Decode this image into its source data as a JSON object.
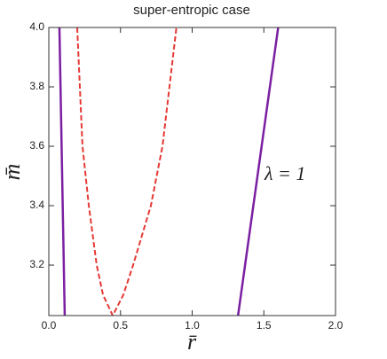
{
  "chart_data": {
    "type": "line",
    "title": "super-entropic case",
    "x_label": "r̄",
    "y_label": "m̄",
    "annotation": "λ = 1",
    "xlim": [
      0,
      2
    ],
    "ylim": [
      3.03,
      4
    ],
    "xticks": [
      {
        "value": 0,
        "label": "0.0"
      },
      0.5,
      {
        "value": 1,
        "label": "1.0"
      },
      1.5,
      {
        "value": 2,
        "label": "2.0"
      }
    ],
    "yticks": [
      3.2,
      3.4,
      3.6,
      3.8,
      {
        "value": 4,
        "label": "4.0"
      }
    ],
    "series": [
      {
        "color": "#7b1fa2",
        "style": "solid",
        "x": [
          0.074,
          0.111
        ],
        "values": [
          4.0,
          3.03
        ]
      },
      {
        "color": "#e53935",
        "style": "dashed",
        "x": [
          0.198,
          0.235,
          0.279,
          0.334,
          0.378,
          0.446,
          0.52,
          0.588,
          0.712,
          0.793,
          0.89
        ],
        "values": [
          4.0,
          3.6,
          3.4,
          3.2,
          3.1,
          3.03,
          3.1,
          3.2,
          3.4,
          3.6,
          4.0
        ]
      },
      {
        "color": "#7b1fa2",
        "style": "solid",
        "x": [
          1.32,
          1.6
        ],
        "values": [
          3.03,
          4.0
        ]
      }
    ]
  }
}
